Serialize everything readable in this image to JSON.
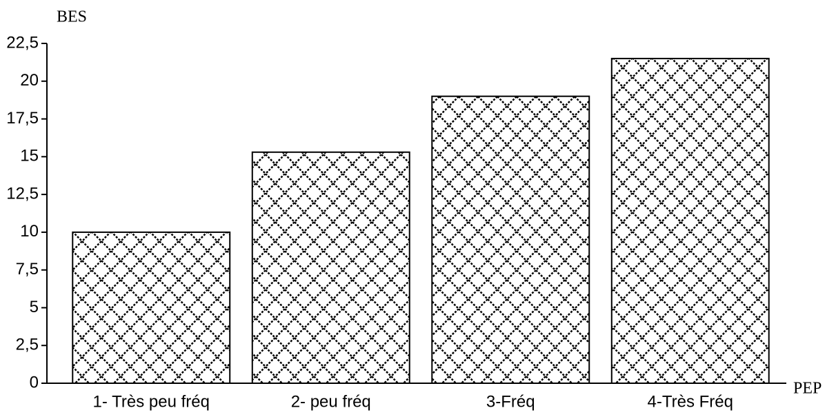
{
  "chart_data": {
    "type": "bar",
    "y_label": "BES",
    "x_label": "PEP",
    "categories": [
      "1- Très peu fréq",
      "2- peu fréq",
      "3-Fréq",
      "4-Très Fréq"
    ],
    "values": [
      10,
      15.3,
      19,
      21.5
    ],
    "color": "#000000",
    "ylim": [
      0,
      22.5
    ],
    "yticks": [
      0,
      {
        "value": 2.5,
        "label": "2,5"
      },
      5,
      {
        "value": 7.5,
        "label": "7,5"
      },
      10,
      {
        "value": 12.5,
        "label": "12,5"
      },
      15,
      {
        "value": 17.5,
        "label": "17,5"
      },
      20,
      {
        "value": 22.5,
        "label": "22,5"
      }
    ],
    "grid": false
  }
}
